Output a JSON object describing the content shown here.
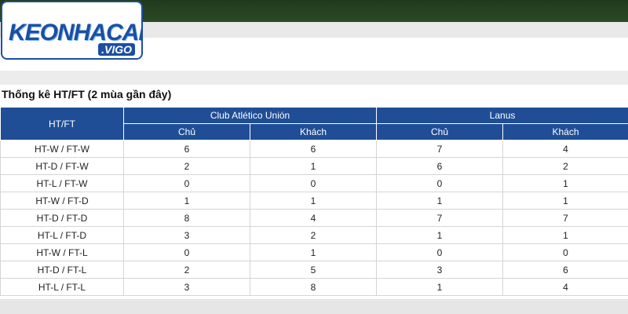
{
  "logo": {
    "name": "KEONHACAI",
    "domain": ".VIGO"
  },
  "section": {
    "title": "Thống kê HT/FT (2 mùa gần đây)"
  },
  "table": {
    "row_header": "HT/FT",
    "groups": [
      "Club Atlético Unión",
      "Lanus"
    ],
    "subheaders": [
      "Chủ",
      "Khách",
      "Chủ",
      "Khách"
    ],
    "rows": [
      [
        "HT-W / FT-W",
        6,
        6,
        7,
        4
      ],
      [
        "HT-D / FT-W",
        2,
        1,
        6,
        2
      ],
      [
        "HT-L / FT-W",
        0,
        0,
        0,
        1
      ],
      [
        "HT-W / FT-D",
        1,
        1,
        1,
        1
      ],
      [
        "HT-D / FT-D",
        8,
        4,
        7,
        7
      ],
      [
        "HT-L / FT-D",
        3,
        2,
        1,
        1
      ],
      [
        "HT-W / FT-L",
        0,
        1,
        0,
        0
      ],
      [
        "HT-D / FT-L",
        2,
        5,
        3,
        6
      ],
      [
        "HT-L / FT-L",
        3,
        8,
        1,
        4
      ]
    ]
  }
}
